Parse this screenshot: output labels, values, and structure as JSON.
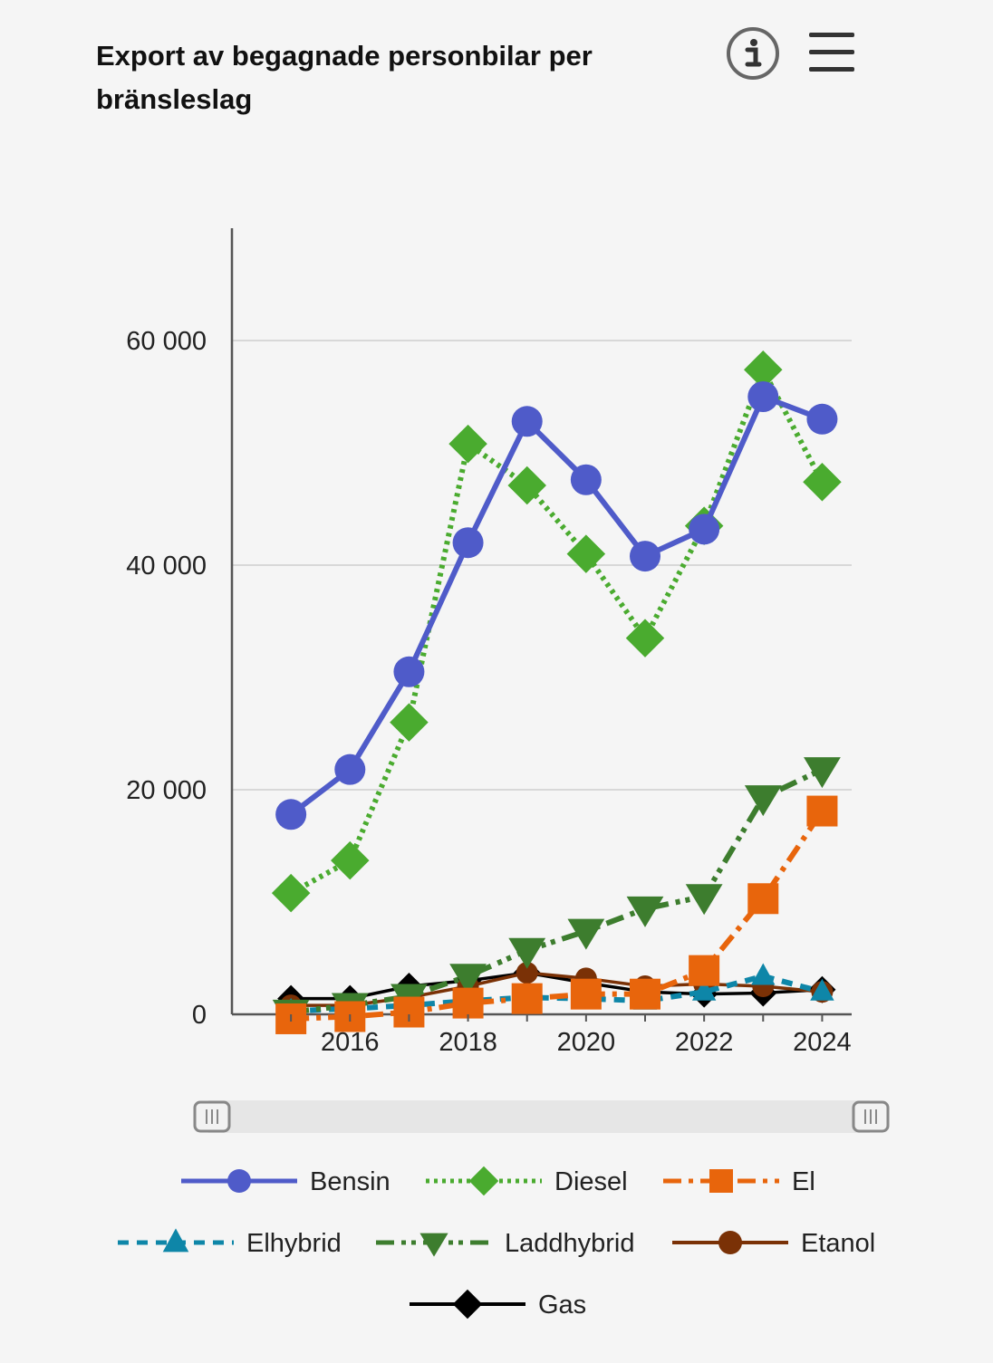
{
  "header": {
    "title": "Export av begagnade personbilar per bränsleslag",
    "info_icon": "info-circle-icon",
    "menu_icon": "hamburger-menu-icon"
  },
  "chart_data": {
    "type": "line",
    "title": "Export av begagnade personbilar per bränsleslag",
    "xlabel": "",
    "ylabel": "",
    "x": [
      2015,
      2016,
      2017,
      2018,
      2019,
      2020,
      2021,
      2022,
      2023,
      2024
    ],
    "x_tick_labels": [
      "2016",
      "2018",
      "2020",
      "2022",
      "2024"
    ],
    "x_tick_values": [
      2016,
      2018,
      2020,
      2022,
      2024
    ],
    "y_tick_labels": [
      "0",
      "20 000",
      "40 000",
      "60 000"
    ],
    "y_tick_values": [
      0,
      20000,
      40000,
      60000
    ],
    "ylim": [
      0,
      70000
    ],
    "xlim": [
      2014,
      2024.5
    ],
    "grid": true,
    "legend_position": "bottom",
    "series": [
      {
        "name": "Bensin",
        "color": "#4f5bc9",
        "dash": "solid",
        "marker": "circle",
        "values": [
          17800,
          21800,
          30500,
          42000,
          52800,
          47600,
          40800,
          43200,
          55000,
          53000
        ]
      },
      {
        "name": "Diesel",
        "color": "#4aab2f",
        "dash": "dotted",
        "marker": "diamond",
        "values": [
          10800,
          13700,
          26000,
          50800,
          47100,
          41000,
          33500,
          43500,
          57400,
          47400
        ]
      },
      {
        "name": "El",
        "color": "#e8650c",
        "dash": "dashdot",
        "marker": "square",
        "values": [
          -400,
          -200,
          200,
          1000,
          1400,
          1800,
          1800,
          3900,
          10300,
          18100
        ]
      },
      {
        "name": "Elhybrid",
        "color": "#0e86a8",
        "dash": "dashed",
        "marker": "triangle-up",
        "values": [
          300,
          500,
          800,
          1200,
          1500,
          1400,
          1200,
          2000,
          3400,
          2000
        ]
      },
      {
        "name": "Laddhybrid",
        "color": "#3d7d2e",
        "dash": "dashdotdot",
        "marker": "triangle-down",
        "values": [
          200,
          800,
          1600,
          3400,
          5700,
          7400,
          9400,
          10500,
          19300,
          21800
        ]
      },
      {
        "name": "Etanol",
        "color": "#7a3106",
        "dash": "solid",
        "marker": "circle",
        "values": [
          800,
          800,
          1500,
          2500,
          3700,
          3200,
          2500,
          2700,
          2500,
          2000
        ]
      },
      {
        "name": "Gas",
        "color": "#000000",
        "dash": "solid",
        "marker": "diamond",
        "values": [
          1400,
          1400,
          2500,
          3000,
          3700,
          2800,
          2000,
          1800,
          1900,
          2200
        ]
      }
    ]
  },
  "range_slider": {
    "left_handle_icon": "grip-handle-icon",
    "right_handle_icon": "grip-handle-icon",
    "start_fraction": 0,
    "end_fraction": 1
  }
}
